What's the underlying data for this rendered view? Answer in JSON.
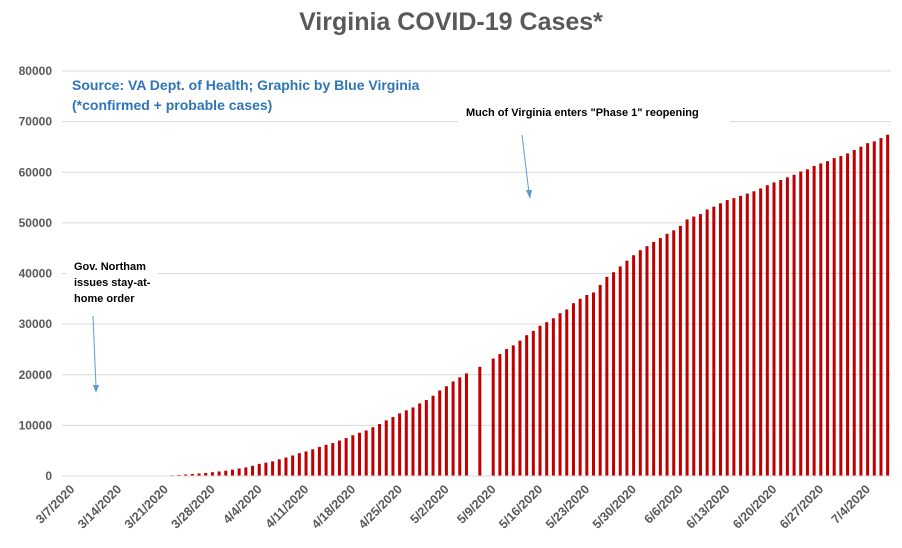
{
  "chart_data": {
    "type": "bar",
    "title": "Virginia COVID-19 Cases*",
    "subtitle_lines": [
      "Source: VA Dept. of Health; Graphic by Blue Virginia",
      "(*confirmed + probable cases)"
    ],
    "xlabel": "",
    "ylabel": "",
    "ylim": [
      0,
      80000
    ],
    "yticks": [
      0,
      10000,
      20000,
      30000,
      40000,
      50000,
      60000,
      70000,
      80000
    ],
    "x_tick_labels": [
      "3/7/2020",
      "3/14/2020",
      "3/21/2020",
      "3/28/2020",
      "4/4/2020",
      "4/11/2020",
      "4/18/2020",
      "4/25/2020",
      "5/2/2020",
      "5/9/2020",
      "5/16/2020",
      "5/23/2020",
      "5/30/2020",
      "6/6/2020",
      "6/13/2020",
      "6/20/2020",
      "6/27/2020",
      "7/4/2020"
    ],
    "x_start": "3/7/2020",
    "x_end": "7/7/2020",
    "bar_color": "#c00000",
    "grid": true,
    "values": [
      0,
      0,
      0,
      0,
      0,
      0,
      0,
      0,
      0,
      0,
      0,
      0,
      0,
      0,
      0,
      0,
      150,
      210,
      300,
      400,
      500,
      610,
      750,
      900,
      1050,
      1250,
      1480,
      1700,
      2010,
      2400,
      2640,
      2900,
      3300,
      3650,
      4050,
      4510,
      4850,
      5270,
      5750,
      6170,
      6500,
      7000,
      7490,
      8050,
      8540,
      8990,
      9630,
      10270,
      10990,
      11640,
      12370,
      12970,
      13540,
      14340,
      15000,
      15850,
      16900,
      17730,
      18670,
      19490,
      20260,
      0,
      21570,
      0,
      23200,
      24080,
      25070,
      25800,
      26750,
      27810,
      28670,
      29680,
      30390,
      31150,
      32150,
      32900,
      34140,
      35000,
      35750,
      36250,
      37730,
      39340,
      40250,
      41400,
      42530,
      43610,
      44610,
      45400,
      46240,
      47000,
      47850,
      48530,
      49400,
      50680,
      51250,
      51730,
      52650,
      53210,
      53870,
      54510,
      54880,
      55340,
      55780,
      56240,
      56790,
      57440,
      57990,
      58470,
      58990,
      59510,
      60140,
      60570,
      61250,
      61740,
      62190,
      62790,
      63200,
      63730,
      64390,
      65060,
      65750,
      66100,
      66740,
      67420
    ]
  },
  "annotations": [
    {
      "lines": [
        "Much of Virginia enters \"Phase 1\" reopening"
      ]
    },
    {
      "lines": [
        "Gov. Northam",
        "issues stay-at-",
        "home order"
      ]
    }
  ]
}
